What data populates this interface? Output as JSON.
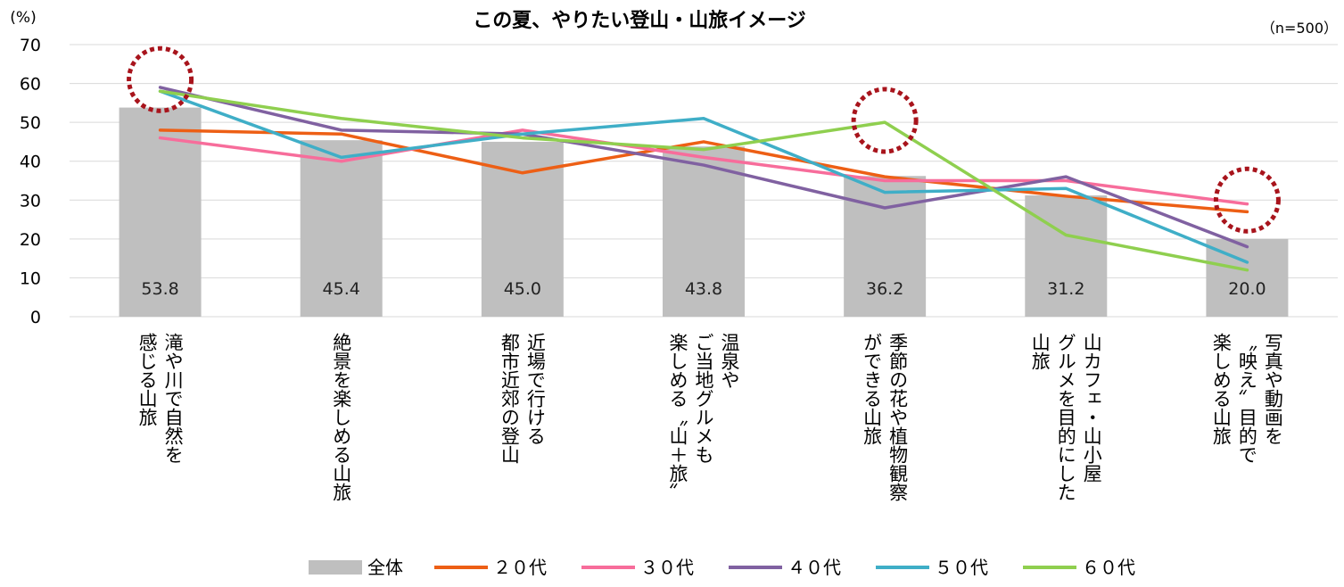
{
  "chart_data": {
    "type": "bar+line",
    "title": "この夏、やりたい登山・山旅イメージ",
    "sample_note": "（n=500）",
    "y_unit": "(%)",
    "ylim": [
      0,
      70
    ],
    "yticks": [
      0,
      10,
      20,
      30,
      40,
      50,
      60,
      70
    ],
    "grid": true,
    "categories": [
      [
        "滝や川で自然を",
        "感じる山旅"
      ],
      [
        "絶景を楽しめる山旅"
      ],
      [
        "近場で行ける",
        "都市近郊の登山"
      ],
      [
        "温泉や",
        "ご当地グルメも",
        "楽しめる〝山＋旅〟"
      ],
      [
        "季節の花や植物観察",
        "ができる山旅"
      ],
      [
        "山カフェ・山小屋",
        "グルメを目的にした",
        "山旅"
      ],
      [
        "写真や動画を",
        "〝映え〟目的で",
        "楽しめる山旅"
      ]
    ],
    "bar_series": {
      "name": "全体",
      "color": "#bfbfbf",
      "values": [
        53.8,
        45.4,
        45.0,
        43.8,
        36.2,
        31.2,
        20.0
      ],
      "labels": [
        "53.8",
        "45.4",
        "45.0",
        "43.8",
        "36.2",
        "31.2",
        "20.0"
      ]
    },
    "line_series": [
      {
        "name": "２０代",
        "color": "#ed5f15",
        "values": [
          48,
          47,
          37,
          45,
          36,
          31,
          27
        ]
      },
      {
        "name": "３０代",
        "color": "#f76d9b",
        "values": [
          46,
          40,
          48,
          41,
          35,
          35,
          29
        ]
      },
      {
        "name": "４０代",
        "color": "#8061a1",
        "values": [
          59,
          48,
          47,
          39,
          28,
          36,
          18
        ]
      },
      {
        "name": "５０代",
        "color": "#3faec7",
        "values": [
          58,
          41,
          47,
          51,
          32,
          33,
          14
        ]
      },
      {
        "name": "６０代",
        "color": "#8fcf4f",
        "values": [
          58,
          51,
          46,
          43,
          50,
          21,
          12
        ]
      }
    ],
    "highlights": [
      {
        "category_index": 0,
        "value": 61
      },
      {
        "category_index": 4,
        "value": 50.5
      },
      {
        "category_index": 6,
        "value": 30
      }
    ],
    "highlight_color": "#a8141c",
    "legend_position": "bottom"
  }
}
